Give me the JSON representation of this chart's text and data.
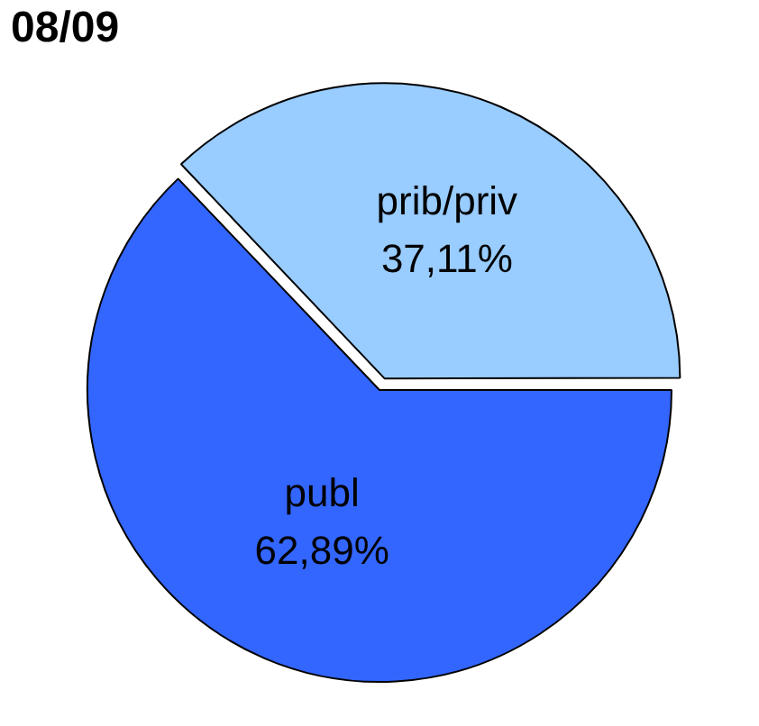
{
  "chart_data": {
    "type": "pie",
    "title": "08/09",
    "categories": [
      "publ",
      "prib/priv"
    ],
    "values": [
      62.89,
      37.11
    ],
    "colors": [
      "#3366ff",
      "#99ccff"
    ],
    "value_labels": [
      "62,89%",
      "37,11%"
    ],
    "legend": false
  }
}
